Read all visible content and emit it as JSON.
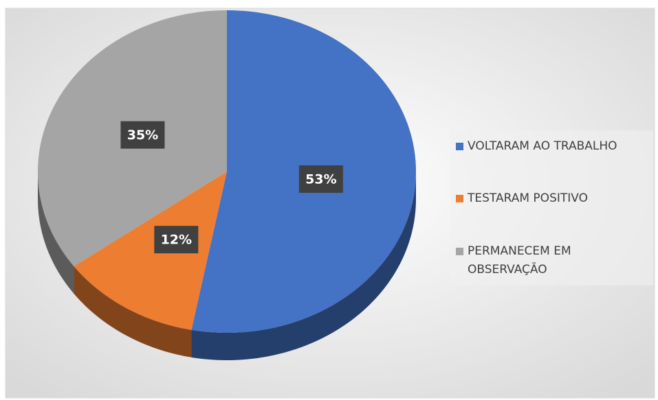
{
  "chart_data": {
    "type": "pie",
    "categories": [
      "VOLTARAM AO TRABALHO",
      "TESTARAM POSITIVO",
      "PERMANECEM EM OBSERVAÇÃO"
    ],
    "values": [
      53,
      12,
      35
    ],
    "value_labels": [
      "53%",
      "12%",
      "35%"
    ],
    "colors": [
      "#4472c4",
      "#ed7d31",
      "#a5a5a5"
    ],
    "legend": "right"
  }
}
